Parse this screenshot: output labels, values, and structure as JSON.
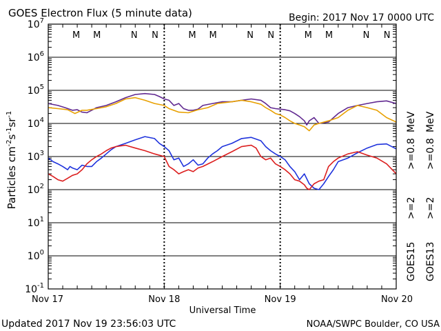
{
  "chart_data": {
    "type": "line",
    "title": "GOES Electron Flux (5 minute data)",
    "begin_label": "Begin: 2017 Nov 17 0000 UTC",
    "xlabel": "Universal Time",
    "ylabel_base": "Particles cm",
    "ylabel_sup1": "-2",
    "ylabel_mid1": "s",
    "ylabel_sup2": "-1",
    "ylabel_mid2": "sr",
    "ylabel_sup3": "-1",
    "x_ticks": [
      "Nov 17",
      "Nov 18",
      "Nov 19",
      "Nov 20"
    ],
    "xlim_hours": [
      0,
      72
    ],
    "y_scale": "log",
    "ylim": [
      0.1,
      10000000
    ],
    "y_tick_exponents": [
      "7",
      "6",
      "5",
      "4",
      "3",
      "2",
      "1",
      "0",
      "-1"
    ],
    "threshold_line": 1000,
    "markers": [
      {
        "label": "M",
        "hour": 7.5,
        "color": "#e02020"
      },
      {
        "label": "M",
        "hour": 11.8,
        "color": "#2020e0"
      },
      {
        "label": "N",
        "hour": 19.5,
        "color": "#e02020"
      },
      {
        "label": "N",
        "hour": 23.8,
        "color": "#2020e0"
      },
      {
        "label": "M",
        "hour": 31.5,
        "color": "#e02020"
      },
      {
        "label": "M",
        "hour": 35.8,
        "color": "#2020e0"
      },
      {
        "label": "N",
        "hour": 43.5,
        "color": "#e02020"
      },
      {
        "label": "N",
        "hour": 47.8,
        "color": "#2020e0"
      },
      {
        "label": "M",
        "hour": 55.5,
        "color": "#e02020"
      },
      {
        "label": "M",
        "hour": 59.8,
        "color": "#2020e0"
      },
      {
        "label": "N",
        "hour": 67.5,
        "color": "#e02020"
      },
      {
        "label": "N",
        "hour": 71.8,
        "color": "#2020e0"
      }
    ],
    "dashed_noon_lines": [
      24,
      48
    ],
    "series": [
      {
        "name": "GOES15 >=0.8 MeV",
        "color": "#602890",
        "x": [
          0,
          2,
          3.5,
          5,
          6,
          7,
          8,
          9,
          10,
          12,
          14,
          16,
          18,
          20,
          22,
          23,
          24,
          25,
          26,
          27,
          28,
          29,
          30,
          31,
          32,
          34,
          36,
          38,
          40,
          42,
          44,
          45,
          46,
          47,
          48,
          49,
          50,
          51,
          52,
          53,
          53.5,
          54,
          55,
          56,
          58,
          60,
          62,
          64,
          66,
          68,
          70,
          72
        ],
        "y": [
          40000,
          35000,
          30000,
          25000,
          26000,
          22000,
          21000,
          25000,
          30000,
          35000,
          45000,
          60000,
          75000,
          80000,
          75000,
          65000,
          55000,
          50000,
          35000,
          40000,
          28000,
          25000,
          25000,
          27000,
          35000,
          40000,
          45000,
          45000,
          50000,
          55000,
          50000,
          40000,
          30000,
          28000,
          27000,
          26000,
          24000,
          20000,
          16000,
          12000,
          9000,
          12000,
          15000,
          10000,
          11000,
          20000,
          30000,
          35000,
          40000,
          45000,
          48000,
          40000
        ]
      },
      {
        "name": "GOES13 >=0.8 MeV",
        "color": "#e8a000",
        "x": [
          0,
          2,
          4,
          5.5,
          7,
          8,
          10,
          12,
          14,
          16,
          18,
          20,
          22,
          24,
          25,
          27,
          29,
          31,
          33,
          35,
          38,
          40,
          42,
          44,
          45,
          46,
          47,
          48,
          49,
          50,
          51,
          52,
          53,
          54,
          55,
          56,
          58,
          60,
          62,
          64,
          66,
          68,
          70,
          72
        ],
        "y": [
          30000,
          28000,
          26000,
          20000,
          25000,
          25000,
          28000,
          32000,
          40000,
          55000,
          60000,
          50000,
          40000,
          35000,
          28000,
          22000,
          21000,
          26000,
          30000,
          40000,
          45000,
          50000,
          45000,
          38000,
          30000,
          25000,
          20000,
          18000,
          15000,
          12000,
          10000,
          9000,
          8000,
          6000,
          9000,
          10000,
          12000,
          15000,
          25000,
          35000,
          30000,
          25000,
          15000,
          11000
        ]
      },
      {
        "name": "GOES15 >=2 MeV",
        "color": "#1e32dc",
        "x": [
          0,
          1,
          2,
          3,
          4,
          4.5,
          5,
          6,
          7,
          8,
          9,
          10,
          11,
          12,
          13,
          14,
          16,
          18,
          20,
          22,
          23,
          24,
          25,
          26,
          27,
          28,
          29,
          30,
          31,
          32,
          33,
          34,
          35,
          36,
          38,
          40,
          42,
          44,
          45,
          46,
          47,
          48,
          49,
          50,
          51,
          52,
          53,
          54,
          55,
          56,
          57,
          58,
          59,
          60,
          62,
          64,
          66,
          68,
          70,
          72
        ],
        "y": [
          900,
          700,
          600,
          500,
          400,
          500,
          450,
          400,
          550,
          500,
          500,
          700,
          900,
          1200,
          1600,
          2000,
          2500,
          3200,
          4000,
          3500,
          2500,
          2000,
          1500,
          800,
          900,
          500,
          600,
          800,
          550,
          600,
          900,
          1200,
          1500,
          2000,
          2500,
          3500,
          3800,
          3000,
          2000,
          1500,
          1200,
          1000,
          800,
          500,
          350,
          200,
          300,
          150,
          110,
          100,
          150,
          250,
          400,
          700,
          900,
          1300,
          1800,
          2300,
          2400,
          1700
        ]
      },
      {
        "name": "GOES13 >=2 MeV",
        "color": "#dc1e1e",
        "x": [
          0,
          1,
          2,
          3,
          4,
          5,
          6,
          7,
          8,
          9,
          10,
          11,
          12,
          13,
          14,
          16,
          18,
          20,
          22,
          24,
          25,
          26,
          27,
          28,
          29,
          30,
          31,
          32,
          34,
          36,
          38,
          40,
          42,
          43,
          44,
          45,
          46,
          47,
          48,
          49,
          50,
          51,
          52,
          53,
          53.5,
          54,
          55,
          56,
          57,
          58,
          59,
          60,
          62,
          64,
          66,
          68,
          70,
          72
        ],
        "y": [
          300,
          250,
          200,
          180,
          220,
          270,
          300,
          400,
          600,
          800,
          1000,
          1200,
          1500,
          1800,
          2000,
          2200,
          1800,
          1500,
          1200,
          1000,
          500,
          400,
          300,
          350,
          400,
          350,
          450,
          500,
          700,
          1000,
          1400,
          2000,
          2200,
          1800,
          1000,
          800,
          900,
          600,
          500,
          400,
          300,
          200,
          180,
          140,
          110,
          100,
          150,
          180,
          200,
          500,
          700,
          900,
          1200,
          1400,
          1100,
          900,
          600,
          300
        ]
      }
    ],
    "legend": {
      "goes15": "GOES15",
      "goes13": "GOES13",
      "ge2": ">=2",
      "ge08": ">=0.8",
      "mev": "MeV",
      "mev2": "MeV",
      "color_ge2_15": "#1e32dc",
      "color_ge2_13": "#dc1e1e",
      "color_ge08_15": "#602890",
      "color_ge08_13": "#e8a000"
    }
  },
  "footer": {
    "updated": "Updated 2017 Nov 19 23:56:03 UTC",
    "credit": "NOAA/SWPC Boulder, CO USA"
  }
}
